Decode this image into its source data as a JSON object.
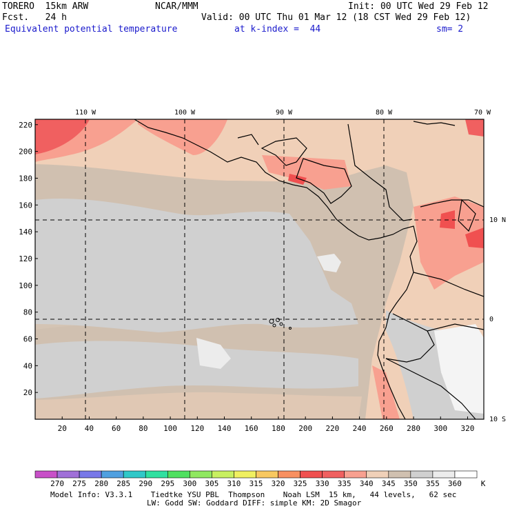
{
  "header": {
    "model": "TORERO  15km ARW",
    "center": "NCAR/MMM",
    "init": "Init: 00 UTC Wed 29 Feb 12",
    "fcst": "Fcst.   24 h",
    "valid": "Valid: 00 UTC Thu 01 Mar 12 (18 CST Wed 29 Feb 12)",
    "field": "Equivalent potential temperature",
    "level": "at k-index =  44",
    "smooth": "sm= 2"
  },
  "map": {
    "top_lon_labels": [
      "110 W",
      "100 W",
      "90 W",
      "80 W",
      "70 W"
    ],
    "right_lat_labels": [
      "10 N",
      "0",
      "10 S"
    ],
    "y_ticks": [
      20,
      40,
      60,
      80,
      100,
      120,
      140,
      160,
      180,
      200,
      220
    ],
    "x_ticks": [
      20,
      40,
      60,
      80,
      100,
      120,
      140,
      160,
      180,
      200,
      220,
      240,
      260,
      280,
      300,
      320
    ]
  },
  "colorbar": {
    "labels": [
      "270",
      "275",
      "280",
      "285",
      "290",
      "295",
      "300",
      "305",
      "310",
      "315",
      "320",
      "325",
      "330",
      "335",
      "340",
      "345",
      "350",
      "355",
      "360"
    ],
    "unit": "K",
    "colors": [
      "#c850c8",
      "#a070d8",
      "#7878e8",
      "#50a0e0",
      "#30c8c8",
      "#30e0a0",
      "#50e060",
      "#90e860",
      "#c8f060",
      "#f0f060",
      "#f8c860",
      "#f89060",
      "#f05050",
      "#f06060",
      "#f8a090",
      "#f0d0b8",
      "#d0c0b0",
      "#d0d0d0",
      "#ececec",
      "#ffffff"
    ]
  },
  "footer": {
    "line1": "Model Info: V3.3.1    Tiedtke YSU PBL  Thompson    Noah LSM  15 km,   44 levels,   62 sec",
    "line2": "LW: Godd SW: Goddard DIFF: simple KM: 2D Smagor"
  }
}
